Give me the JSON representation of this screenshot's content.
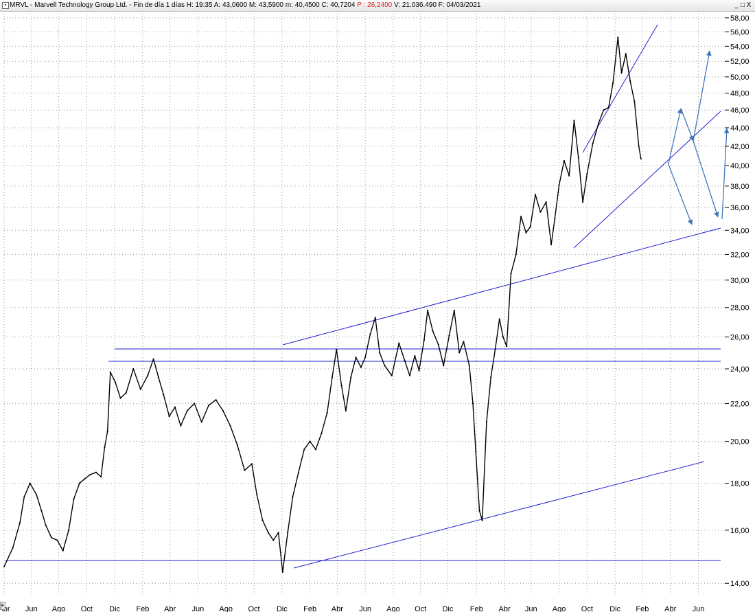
{
  "header": {
    "symbol_box": "▪",
    "title_prefix": "MRVL - Marvell Technology Group Ltd. - Fin de día 1 días H: 19:35 A: 43,0600 M: 43,5900 m: 40,4500 C: 40,7204",
    "p_value": "P : 26,2400",
    "title_suffix": "V: 21.036.490 F: 04/03/2021",
    "window_controls": [
      "_",
      "□",
      "X"
    ]
  },
  "scroll_left_icon": "▸",
  "chart_data": {
    "type": "line",
    "scale": "log",
    "ylim": [
      13.6,
      58.6
    ],
    "grid": true,
    "grid_style": "dotted",
    "y_ticks": [
      "14,00",
      "16,00",
      "18,00",
      "20,00",
      "22,00",
      "24,00",
      "26,00",
      "28,00",
      "30,00",
      "32,00",
      "34,00",
      "36,00",
      "38,00",
      "40,00",
      "42,00",
      "44,00",
      "46,00",
      "48,00",
      "50,00",
      "52,00",
      "54,00",
      "56,00",
      "58,00"
    ],
    "x_ticks": [
      "Abr",
      "Jun",
      "Ago",
      "Oct",
      "Dic",
      "Feb",
      "Abr",
      "Jun",
      "Ago",
      "Oct",
      "Dic",
      "Feb",
      "Abr",
      "Jun",
      "Ago",
      "Oct",
      "Dic",
      "Feb",
      "Abr",
      "Jun",
      "Ago",
      "Oct",
      "Dic",
      "Feb",
      "Abr",
      "Jun"
    ],
    "x_tick_fractions": [
      0.0,
      0.038,
      0.076,
      0.115,
      0.154,
      0.193,
      0.231,
      0.27,
      0.309,
      0.348,
      0.387,
      0.426,
      0.464,
      0.503,
      0.542,
      0.58,
      0.618,
      0.658,
      0.697,
      0.734,
      0.773,
      0.812,
      0.851,
      0.889,
      0.928,
      0.967
    ],
    "series": [
      {
        "color": "#000000",
        "points": [
          [
            0.0,
            14.6
          ],
          [
            0.012,
            15.3
          ],
          [
            0.022,
            16.3
          ],
          [
            0.028,
            17.4
          ],
          [
            0.036,
            18.0
          ],
          [
            0.045,
            17.5
          ],
          [
            0.052,
            16.8
          ],
          [
            0.058,
            16.2
          ],
          [
            0.066,
            15.7
          ],
          [
            0.074,
            15.6
          ],
          [
            0.082,
            15.2
          ],
          [
            0.09,
            16.0
          ],
          [
            0.097,
            17.3
          ],
          [
            0.105,
            18.0
          ],
          [
            0.112,
            18.2
          ],
          [
            0.12,
            18.4
          ],
          [
            0.128,
            18.5
          ],
          [
            0.135,
            18.3
          ],
          [
            0.14,
            19.7
          ],
          [
            0.144,
            20.5
          ],
          [
            0.148,
            23.8
          ],
          [
            0.155,
            23.2
          ],
          [
            0.162,
            22.3
          ],
          [
            0.17,
            22.6
          ],
          [
            0.18,
            24.0
          ],
          [
            0.19,
            22.8
          ],
          [
            0.2,
            23.6
          ],
          [
            0.208,
            24.6
          ],
          [
            0.215,
            23.5
          ],
          [
            0.222,
            22.5
          ],
          [
            0.23,
            21.3
          ],
          [
            0.238,
            21.8
          ],
          [
            0.246,
            20.8
          ],
          [
            0.255,
            21.6
          ],
          [
            0.265,
            22.0
          ],
          [
            0.275,
            21.0
          ],
          [
            0.285,
            21.9
          ],
          [
            0.295,
            22.2
          ],
          [
            0.305,
            21.6
          ],
          [
            0.315,
            20.8
          ],
          [
            0.325,
            19.8
          ],
          [
            0.335,
            18.6
          ],
          [
            0.345,
            18.9
          ],
          [
            0.352,
            17.5
          ],
          [
            0.36,
            16.4
          ],
          [
            0.368,
            15.9
          ],
          [
            0.375,
            15.6
          ],
          [
            0.382,
            15.9
          ],
          [
            0.388,
            14.4
          ],
          [
            0.395,
            15.9
          ],
          [
            0.402,
            17.4
          ],
          [
            0.41,
            18.5
          ],
          [
            0.418,
            19.6
          ],
          [
            0.426,
            20.0
          ],
          [
            0.434,
            19.6
          ],
          [
            0.442,
            20.4
          ],
          [
            0.45,
            21.5
          ],
          [
            0.457,
            23.5
          ],
          [
            0.463,
            25.2
          ],
          [
            0.47,
            23.0
          ],
          [
            0.476,
            21.6
          ],
          [
            0.483,
            23.5
          ],
          [
            0.49,
            24.7
          ],
          [
            0.497,
            24.1
          ],
          [
            0.503,
            24.7
          ],
          [
            0.51,
            26.2
          ],
          [
            0.517,
            27.3
          ],
          [
            0.523,
            25.0
          ],
          [
            0.53,
            24.2
          ],
          [
            0.54,
            23.6
          ],
          [
            0.55,
            25.6
          ],
          [
            0.558,
            24.5
          ],
          [
            0.565,
            23.6
          ],
          [
            0.572,
            24.8
          ],
          [
            0.578,
            23.9
          ],
          [
            0.585,
            25.8
          ],
          [
            0.59,
            27.8
          ],
          [
            0.597,
            26.4
          ],
          [
            0.605,
            25.5
          ],
          [
            0.612,
            24.2
          ],
          [
            0.62,
            26.1
          ],
          [
            0.627,
            27.8
          ],
          [
            0.634,
            25.0
          ],
          [
            0.64,
            25.7
          ],
          [
            0.648,
            24.2
          ],
          [
            0.653,
            22.0
          ],
          [
            0.657,
            19.5
          ],
          [
            0.662,
            16.8
          ],
          [
            0.666,
            16.4
          ],
          [
            0.672,
            21.0
          ],
          [
            0.678,
            23.5
          ],
          [
            0.684,
            25.2
          ],
          [
            0.69,
            27.2
          ],
          [
            0.695,
            26.0
          ],
          [
            0.7,
            25.4
          ],
          [
            0.706,
            30.5
          ],
          [
            0.713,
            32.0
          ],
          [
            0.72,
            35.2
          ],
          [
            0.727,
            33.8
          ],
          [
            0.733,
            34.3
          ],
          [
            0.74,
            37.2
          ],
          [
            0.747,
            35.6
          ],
          [
            0.755,
            36.5
          ],
          [
            0.762,
            32.8
          ],
          [
            0.767,
            35.0
          ],
          [
            0.773,
            38.1
          ],
          [
            0.78,
            40.5
          ],
          [
            0.787,
            39.0
          ],
          [
            0.794,
            44.8
          ],
          [
            0.8,
            40.8
          ],
          [
            0.806,
            36.5
          ],
          [
            0.812,
            39.2
          ],
          [
            0.82,
            42.3
          ],
          [
            0.828,
            44.5
          ],
          [
            0.835,
            46.0
          ],
          [
            0.842,
            46.3
          ],
          [
            0.848,
            49.2
          ],
          [
            0.855,
            55.2
          ],
          [
            0.86,
            50.5
          ],
          [
            0.866,
            53.0
          ],
          [
            0.872,
            49.5
          ],
          [
            0.878,
            47.0
          ],
          [
            0.884,
            42.0
          ],
          [
            0.887,
            40.7
          ]
        ]
      }
    ]
  }
}
